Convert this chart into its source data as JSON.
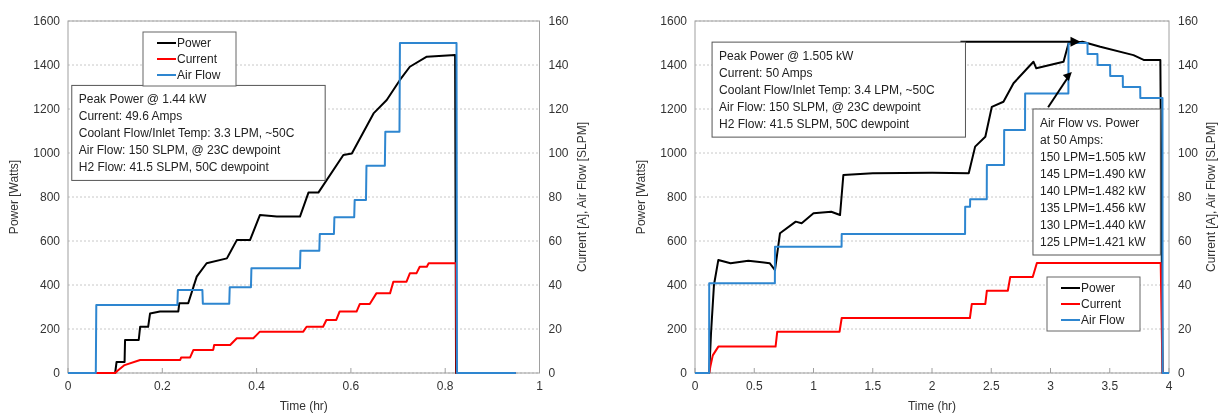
{
  "chart_data": [
    {
      "type": "line",
      "xlabel": "Time (hr)",
      "ylabel": "Power  [Watts]",
      "y2label": "Current [A], Air Flow [SLPM]",
      "xlim": [
        0,
        1
      ],
      "xticks": [
        0,
        0.2,
        0.4,
        0.6,
        0.8,
        1
      ],
      "ylim": [
        0,
        1600
      ],
      "yticks": [
        0,
        200,
        400,
        600,
        800,
        1000,
        1200,
        1400,
        1600
      ],
      "y2lim": [
        0,
        160
      ],
      "y2ticks": [
        0,
        20,
        40,
        60,
        80,
        100,
        120,
        140,
        160
      ],
      "grid": "y",
      "legend": "top left",
      "annotations": [
        "Peak Power @ 1.44 kW\nCurrent: 49.6 Amps\nCoolant Flow/Inlet Temp: 3.3 LPM, ~50C\nAir Flow: 150 SLPM, @ 23C dewpoint\nH2 Flow: 41.5 SLPM, 50C dewpoint"
      ],
      "series": [
        {
          "name": "Power",
          "color": "#000000",
          "x": [
            0,
            0.1,
            0.103,
            0.12,
            0.121,
            0.15,
            0.153,
            0.17,
            0.174,
            0.195,
            0.234,
            0.236,
            0.255,
            0.273,
            0.294,
            0.337,
            0.358,
            0.386,
            0.407,
            0.443,
            0.492,
            0.51,
            0.531,
            0.584,
            0.602,
            0.648,
            0.676,
            0.704,
            0.725,
            0.761,
            0.821,
            0.823,
            0.95
          ],
          "values": [
            0,
            0,
            50,
            50,
            150,
            150,
            210,
            210,
            270,
            280,
            280,
            317,
            317,
            438,
            499,
            521,
            604,
            604,
            718,
            711,
            711,
            820,
            820,
            991,
            998,
            1180,
            1241,
            1332,
            1392,
            1438,
            1445,
            0,
            0
          ]
        },
        {
          "name": "Current",
          "color": "#ff0000",
          "axis": "y2",
          "x": [
            0,
            0.1,
            0.105,
            0.12,
            0.153,
            0.238,
            0.24,
            0.259,
            0.266,
            0.308,
            0.31,
            0.344,
            0.358,
            0.393,
            0.407,
            0.499,
            0.506,
            0.541,
            0.548,
            0.569,
            0.576,
            0.612,
            0.619,
            0.64,
            0.654,
            0.683,
            0.69,
            0.718,
            0.725,
            0.739,
            0.746,
            0.761,
            0.765,
            0.823,
            0.824,
            0.95
          ],
          "values": [
            0,
            0,
            1,
            3.6,
            5.9,
            5.9,
            7.1,
            7.1,
            10.5,
            10.5,
            12.7,
            12.7,
            15.8,
            15.8,
            18.8,
            18.8,
            21,
            21,
            24.1,
            24.1,
            27.9,
            27.9,
            31.4,
            31.4,
            36.2,
            36.2,
            41.5,
            41.5,
            45.3,
            45.3,
            48.3,
            48.3,
            49.9,
            49.9,
            0,
            0
          ]
        },
        {
          "name": "Air Flow",
          "color": "#2e86d0",
          "axis": "y2",
          "x": [
            0,
            0.059,
            0.06,
            0.232,
            0.233,
            0.285,
            0.286,
            0.342,
            0.343,
            0.388,
            0.389,
            0.492,
            0.493,
            0.533,
            0.534,
            0.564,
            0.565,
            0.607,
            0.608,
            0.632,
            0.633,
            0.672,
            0.673,
            0.703,
            0.704,
            0.824,
            0.825,
            0.95
          ],
          "values": [
            0,
            0,
            30.9,
            30.9,
            37.7,
            37.7,
            31.5,
            31.5,
            39,
            39,
            47.6,
            47.6,
            55.6,
            55.6,
            63.2,
            63.2,
            70.8,
            70.8,
            78.6,
            78.6,
            94.2,
            94.2,
            109.7,
            109.7,
            150,
            150,
            0,
            0
          ]
        }
      ]
    },
    {
      "type": "line",
      "xlabel": "Time (hr)",
      "ylabel": "Power  [Watts]",
      "y2label": "Current [A], Air Flow [SLPM]",
      "xlim": [
        0,
        4
      ],
      "xticks": [
        0,
        0.5,
        1,
        1.5,
        2,
        2.5,
        3,
        3.5,
        4
      ],
      "ylim": [
        0,
        1600
      ],
      "yticks": [
        0,
        200,
        400,
        600,
        800,
        1000,
        1200,
        1400,
        1600
      ],
      "y2lim": [
        0,
        160
      ],
      "y2ticks": [
        0,
        20,
        40,
        60,
        80,
        100,
        120,
        140,
        160
      ],
      "grid": "y",
      "legend": "bottom right",
      "annotations": [
        "Peak Power @ 1.505 kW\nCurrent: 50 Amps\nCoolant Flow/Inlet Temp: 3.4 LPM, ~50C\nAir Flow: 150 SLPM, @ 23C dewpoint\nH2 Flow: 41.5 SLPM, 50C dewpoint",
        "Air Flow vs. Power\nat 50 Amps:\n150 LPM=1.505 kW\n145 LPM=1.490 kW\n140 LPM=1.482 kW\n135 LPM=1.456 kW\n130 LPM=1.440 kW\n125 LPM=1.421 kW"
      ],
      "series": [
        {
          "name": "Power",
          "color": "#000000",
          "x": [
            0,
            0.12,
            0.135,
            0.16,
            0.197,
            0.3,
            0.45,
            0.63,
            0.675,
            0.717,
            0.85,
            0.9,
            1.0,
            1.15,
            1.224,
            1.252,
            1.5,
            2.0,
            2.31,
            2.364,
            2.45,
            2.505,
            2.603,
            2.688,
            2.856,
            2.88,
            3.11,
            3.152,
            3.27,
            3.42,
            3.7,
            3.786,
            3.927,
            3.946,
            4
          ],
          "values": [
            0,
            0,
            180,
            400,
            514,
            499,
            510,
            499,
            468,
            635,
            688,
            681,
            726,
            733,
            718,
            900,
            908,
            910,
            908,
            1029,
            1074,
            1210,
            1233,
            1317,
            1415,
            1385,
            1415,
            1498,
            1506,
            1483,
            1445,
            1423,
            1423,
            0,
            0
          ]
        },
        {
          "name": "Current",
          "color": "#ff0000",
          "axis": "y2",
          "x": [
            0,
            0.12,
            0.13,
            0.15,
            0.197,
            0.68,
            0.694,
            1.22,
            1.238,
            2.32,
            2.336,
            2.45,
            2.463,
            2.64,
            2.66,
            2.85,
            2.885,
            3.93,
            3.945,
            4
          ],
          "values": [
            0,
            0,
            3,
            8,
            12,
            12,
            18.8,
            18.8,
            25,
            25,
            31.4,
            31.4,
            37.4,
            37.4,
            43.6,
            43.6,
            50,
            50,
            0,
            0
          ]
        },
        {
          "name": "Air Flow",
          "color": "#2e86d0",
          "axis": "y2",
          "x": [
            0,
            0.119,
            0.12,
            0.674,
            0.675,
            1.237,
            1.238,
            2.279,
            2.28,
            2.321,
            2.322,
            2.462,
            2.463,
            2.608,
            2.609,
            2.785,
            2.786,
            3.151,
            3.152,
            3.312,
            3.313,
            3.396,
            3.397,
            3.503,
            3.504,
            3.61,
            3.611,
            3.757,
            3.758,
            3.945,
            3.946,
            4
          ],
          "values": [
            0,
            0,
            40.8,
            40.8,
            57.4,
            57.4,
            63.2,
            63.2,
            75.6,
            75.6,
            79,
            79,
            94.5,
            94.5,
            110.4,
            110.4,
            127,
            127,
            150,
            150,
            145,
            145,
            140,
            140,
            135,
            135,
            130,
            130,
            125,
            125,
            0,
            0
          ]
        }
      ]
    }
  ]
}
